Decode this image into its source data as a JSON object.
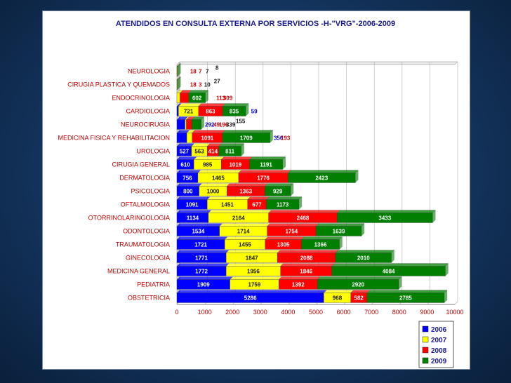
{
  "chart_data": {
    "type": "bar",
    "orientation": "horizontal",
    "stacked": true,
    "title": "ATENDIDOS EN CONSULTA EXTERNA POR SERVICIOS -H-\"VRG\"-2006-2009",
    "xlim": [
      0,
      10000
    ],
    "xticks": [
      0,
      1000,
      2000,
      3000,
      4000,
      5000,
      6000,
      7000,
      8000,
      9000,
      10000
    ],
    "legend_position": "bottom-right",
    "categories": [
      "NEUROLOGIA",
      "CIRUGIA PLASTICA Y QUEMADOS",
      "ENDOCRINOLOGIA",
      "CARDIOLOGIA",
      "NEUROCIRUGIA",
      "MEDICINA FISICA Y REHABILITACION",
      "UROLOGIA",
      "CIRUGIA GENERAL",
      "DERMATOLOGIA",
      "PSICOLOGIA",
      "OFTALMOLOGIA",
      "OTORRINOLARINGOLOGIA",
      "ODONTOLOGIA",
      "TRAUMATOLOGIA",
      "GINECOLOGIA",
      "MEDICINA GENERAL",
      "PEDIATRIA",
      "OBSTETRICIA"
    ],
    "series": [
      {
        "name": "2006",
        "color": "#0000ff",
        "values": [
          0,
          0,
          0,
          59,
          292,
          356,
          527,
          610,
          756,
          800,
          1091,
          1134,
          1534,
          1721,
          1771,
          1772,
          1909,
          5286
        ]
      },
      {
        "name": "2007",
        "color": "#ffff00",
        "values": [
          18,
          18,
          113,
          721,
          49,
          193,
          563,
          985,
          1465,
          1000,
          1451,
          2164,
          1714,
          1455,
          1847,
          1956,
          1759,
          968
        ]
      },
      {
        "name": "2008",
        "color": "#ff0000",
        "values": [
          7,
          3,
          309,
          863,
          196,
          1091,
          414,
          1019,
          1776,
          1363,
          677,
          2468,
          1754,
          1305,
          2088,
          1846,
          1392,
          582
        ]
      },
      {
        "name": "2009",
        "color": "#007f00",
        "values": [
          7,
          10,
          602,
          835,
          339,
          1709,
          811,
          1191,
          2423,
          929,
          1173,
          3433,
          1639,
          1366,
          2010,
          4084,
          2920,
          2785
        ]
      }
    ],
    "extra_labels": [
      {
        "category": "NEUROLOGIA",
        "text": "8"
      },
      {
        "category": "CIRUGIA PLASTICA Y QUEMADOS",
        "text": "27"
      },
      {
        "category": "NEUROCIRUGIA",
        "text": "155"
      }
    ]
  }
}
